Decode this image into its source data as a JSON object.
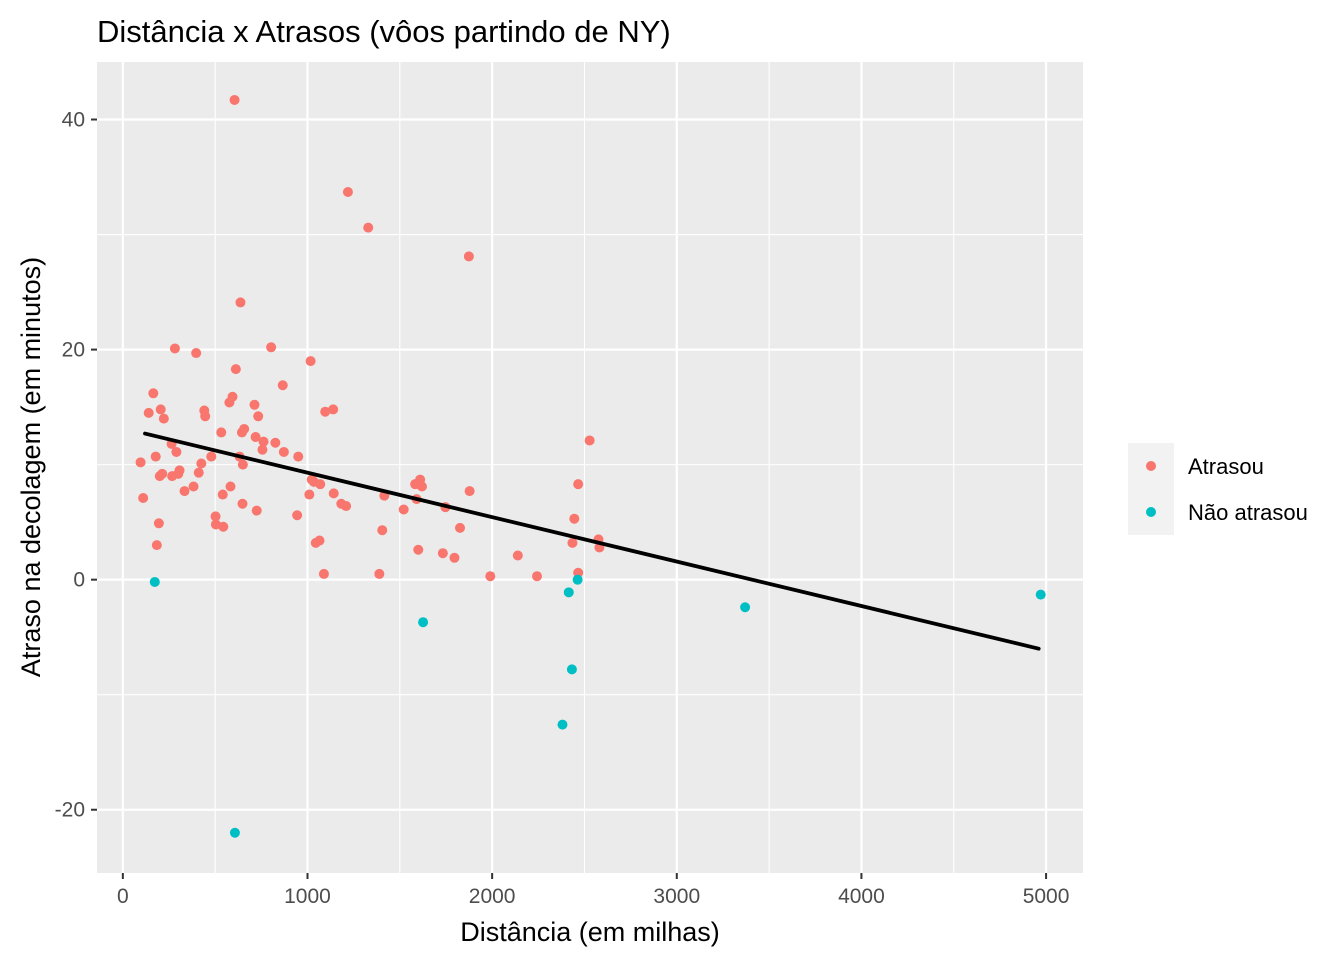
{
  "chart_data": {
    "type": "scatter",
    "title": "Distância x Atrasos (vôos partindo de NY)",
    "xlabel": "Distância (em milhas)",
    "ylabel": "Atraso na decolagem (em minutos)",
    "xlim": [
      -140,
      5200
    ],
    "ylim": [
      -25.5,
      45
    ],
    "x_ticks": [
      0,
      1000,
      2000,
      3000,
      4000,
      5000
    ],
    "y_ticks": [
      -20,
      0,
      20,
      40
    ],
    "grid": true,
    "background": "#ebebeb",
    "legend_position": "right",
    "series": [
      {
        "name": "Atrasou",
        "color": "#f8766d",
        "points": [
          [
            96,
            10.2
          ],
          [
            110,
            7.1
          ],
          [
            140,
            14.5
          ],
          [
            165,
            16.2
          ],
          [
            178,
            10.7
          ],
          [
            184,
            3.0
          ],
          [
            195,
            4.9
          ],
          [
            200,
            9.0
          ],
          [
            205,
            14.8
          ],
          [
            213,
            9.2
          ],
          [
            222,
            14.0
          ],
          [
            264,
            11.8
          ],
          [
            267,
            9.0
          ],
          [
            282,
            20.1
          ],
          [
            290,
            11.1
          ],
          [
            300,
            9.2
          ],
          [
            307,
            9.5
          ],
          [
            334,
            7.7
          ],
          [
            383,
            8.1
          ],
          [
            397,
            19.7
          ],
          [
            411,
            9.3
          ],
          [
            425,
            10.1
          ],
          [
            441,
            14.7
          ],
          [
            446,
            14.2
          ],
          [
            479,
            10.7
          ],
          [
            502,
            5.5
          ],
          [
            504,
            4.8
          ],
          [
            533,
            12.8
          ],
          [
            541,
            7.4
          ],
          [
            544,
            4.6
          ],
          [
            577,
            15.4
          ],
          [
            583,
            8.1
          ],
          [
            594,
            15.9
          ],
          [
            605,
            41.7
          ],
          [
            612,
            18.3
          ],
          [
            632,
            10.7
          ],
          [
            637,
            24.1
          ],
          [
            645,
            12.8
          ],
          [
            648,
            6.6
          ],
          [
            650,
            10.0
          ],
          [
            657,
            13.1
          ],
          [
            713,
            15.2
          ],
          [
            719,
            12.4
          ],
          [
            725,
            6.0
          ],
          [
            733,
            14.2
          ],
          [
            756,
            11.3
          ],
          [
            762,
            12.0
          ],
          [
            803,
            20.2
          ],
          [
            826,
            11.9
          ],
          [
            866,
            16.9
          ],
          [
            872,
            11.1
          ],
          [
            944,
            5.6
          ],
          [
            950,
            10.7
          ],
          [
            1010,
            7.4
          ],
          [
            1017,
            19.0
          ],
          [
            1023,
            8.7
          ],
          [
            1035,
            8.5
          ],
          [
            1045,
            3.2
          ],
          [
            1065,
            3.4
          ],
          [
            1069,
            8.3
          ],
          [
            1089,
            0.5
          ],
          [
            1096,
            14.6
          ],
          [
            1139,
            14.8
          ],
          [
            1142,
            7.5
          ],
          [
            1183,
            6.6
          ],
          [
            1209,
            6.4
          ],
          [
            1219,
            33.7
          ],
          [
            1329,
            30.6
          ],
          [
            1389,
            0.5
          ],
          [
            1405,
            4.3
          ],
          [
            1416,
            7.3
          ],
          [
            1521,
            6.1
          ],
          [
            1583,
            8.3
          ],
          [
            1591,
            7.0
          ],
          [
            1600,
            2.6
          ],
          [
            1610,
            8.7
          ],
          [
            1620,
            8.1
          ],
          [
            1733,
            2.3
          ],
          [
            1747,
            6.3
          ],
          [
            1796,
            1.9
          ],
          [
            1826,
            4.5
          ],
          [
            1874,
            28.1
          ],
          [
            1878,
            7.7
          ],
          [
            1990,
            0.3
          ],
          [
            2139,
            2.1
          ],
          [
            2243,
            0.3
          ],
          [
            2435,
            3.2
          ],
          [
            2445,
            5.3
          ],
          [
            2466,
            0.6
          ],
          [
            2466,
            8.3
          ],
          [
            2528,
            12.1
          ],
          [
            2576,
            3.5
          ],
          [
            2581,
            2.8
          ]
        ]
      },
      {
        "name": "Não atrasou",
        "color": "#00bfc4",
        "points": [
          [
            173,
            -0.2
          ],
          [
            607,
            -22.0
          ],
          [
            1626,
            -3.7
          ],
          [
            2381,
            -12.6
          ],
          [
            2415,
            -1.1
          ],
          [
            2432,
            -7.8
          ],
          [
            2463,
            0.0
          ],
          [
            3370,
            -2.4
          ],
          [
            4971,
            -1.3
          ]
        ]
      }
    ],
    "trend_line": {
      "color": "#000000",
      "x_start": 120,
      "y_start": 12.7,
      "x_end": 4960,
      "y_end": -6.0
    }
  }
}
